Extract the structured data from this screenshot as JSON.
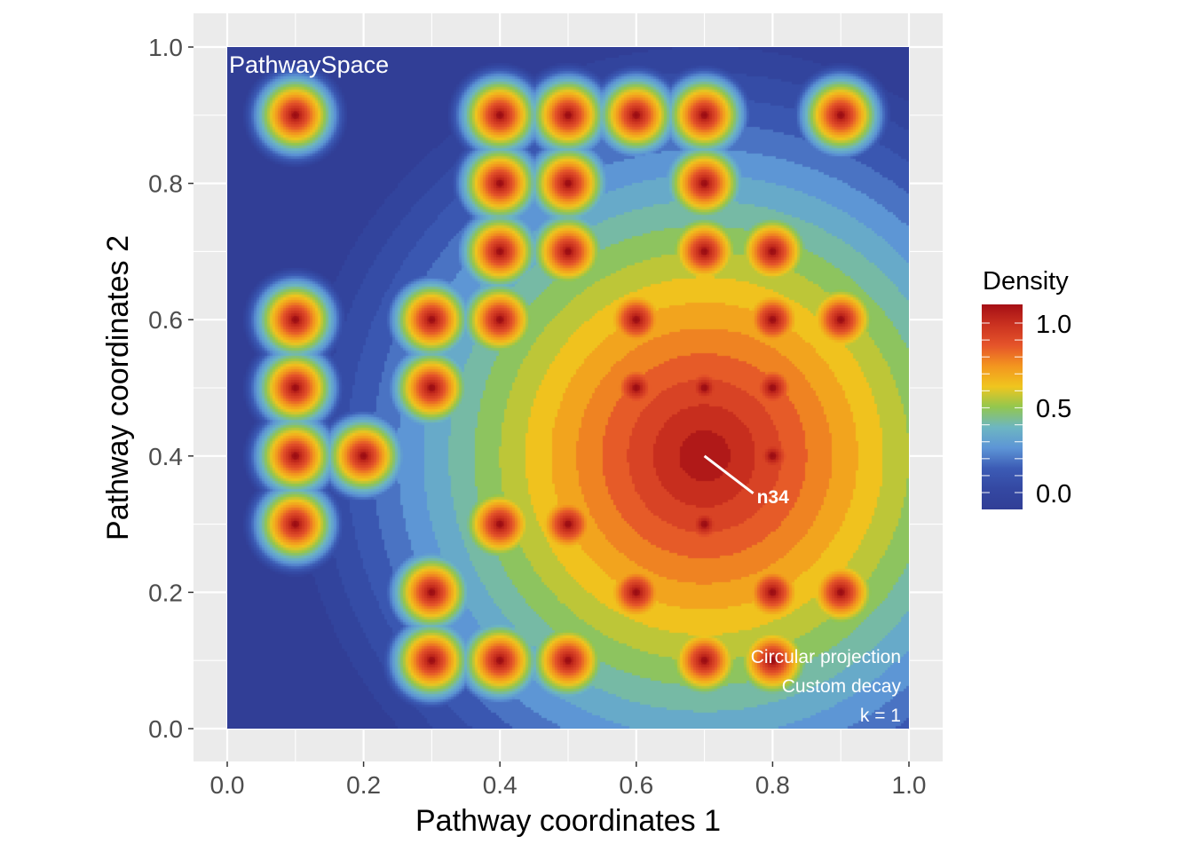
{
  "chart_data": {
    "type": "heatmap",
    "title": "",
    "xlabel": "Pathway coordinates 1",
    "ylabel": "Pathway coordinates 2",
    "xlim": [
      0,
      1
    ],
    "ylim": [
      0,
      1
    ],
    "xticks": [
      "0.0",
      "0.2",
      "0.4",
      "0.6",
      "0.8",
      "1.0"
    ],
    "yticks": [
      "0.0",
      "0.2",
      "0.4",
      "0.6",
      "0.8",
      "1.0"
    ],
    "grid": true,
    "panel_label": "PathwaySpace",
    "annotations": [
      "Circular projection",
      "Custom decay",
      "k = 1"
    ],
    "highlight": {
      "label": "n34",
      "x": 0.7,
      "y": 0.4
    },
    "legend": {
      "title": "Density",
      "position": "right",
      "ticks": [
        "1.0",
        "0.5",
        "0.0"
      ],
      "range": [
        0,
        1
      ]
    },
    "palette": [
      "#313E96",
      "#3448A2",
      "#3C5BB5",
      "#5D95D6",
      "#6DB6C2",
      "#93C74E",
      "#F0C51E",
      "#F3951F",
      "#E5542A",
      "#CB3220",
      "#A50F15"
    ],
    "signal_center": {
      "x": 0.7,
      "y": 0.4,
      "value": 1.0
    },
    "points": [
      {
        "x": 0.1,
        "y": 0.9,
        "value": 1
      },
      {
        "x": 0.4,
        "y": 0.9,
        "value": 1
      },
      {
        "x": 0.5,
        "y": 0.9,
        "value": 1
      },
      {
        "x": 0.6,
        "y": 0.9,
        "value": 1
      },
      {
        "x": 0.7,
        "y": 0.9,
        "value": 1
      },
      {
        "x": 0.9,
        "y": 0.9,
        "value": 1
      },
      {
        "x": 0.4,
        "y": 0.8,
        "value": 1
      },
      {
        "x": 0.5,
        "y": 0.8,
        "value": 1
      },
      {
        "x": 0.7,
        "y": 0.8,
        "value": 1
      },
      {
        "x": 0.4,
        "y": 0.7,
        "value": 1
      },
      {
        "x": 0.5,
        "y": 0.7,
        "value": 1
      },
      {
        "x": 0.7,
        "y": 0.7,
        "value": 1
      },
      {
        "x": 0.8,
        "y": 0.7,
        "value": 1
      },
      {
        "x": 0.1,
        "y": 0.6,
        "value": 1
      },
      {
        "x": 0.3,
        "y": 0.6,
        "value": 1
      },
      {
        "x": 0.4,
        "y": 0.6,
        "value": 1
      },
      {
        "x": 0.6,
        "y": 0.6,
        "value": 1
      },
      {
        "x": 0.8,
        "y": 0.6,
        "value": 1
      },
      {
        "x": 0.9,
        "y": 0.6,
        "value": 1
      },
      {
        "x": 0.1,
        "y": 0.5,
        "value": 1
      },
      {
        "x": 0.3,
        "y": 0.5,
        "value": 1
      },
      {
        "x": 0.6,
        "y": 0.5,
        "value": 1
      },
      {
        "x": 0.7,
        "y": 0.5,
        "value": 1
      },
      {
        "x": 0.8,
        "y": 0.5,
        "value": 1
      },
      {
        "x": 0.1,
        "y": 0.4,
        "value": 1
      },
      {
        "x": 0.2,
        "y": 0.4,
        "value": 1
      },
      {
        "x": 0.8,
        "y": 0.4,
        "value": 1
      },
      {
        "x": 0.1,
        "y": 0.3,
        "value": 1
      },
      {
        "x": 0.4,
        "y": 0.3,
        "value": 1
      },
      {
        "x": 0.5,
        "y": 0.3,
        "value": 1
      },
      {
        "x": 0.7,
        "y": 0.3,
        "value": 1
      },
      {
        "x": 0.3,
        "y": 0.2,
        "value": 1
      },
      {
        "x": 0.6,
        "y": 0.2,
        "value": 1
      },
      {
        "x": 0.8,
        "y": 0.2,
        "value": 1
      },
      {
        "x": 0.9,
        "y": 0.2,
        "value": 1
      },
      {
        "x": 0.3,
        "y": 0.1,
        "value": 1
      },
      {
        "x": 0.4,
        "y": 0.1,
        "value": 1
      },
      {
        "x": 0.5,
        "y": 0.1,
        "value": 1
      },
      {
        "x": 0.7,
        "y": 0.1,
        "value": 1
      },
      {
        "x": 0.8,
        "y": 0.1,
        "value": 1
      }
    ]
  }
}
